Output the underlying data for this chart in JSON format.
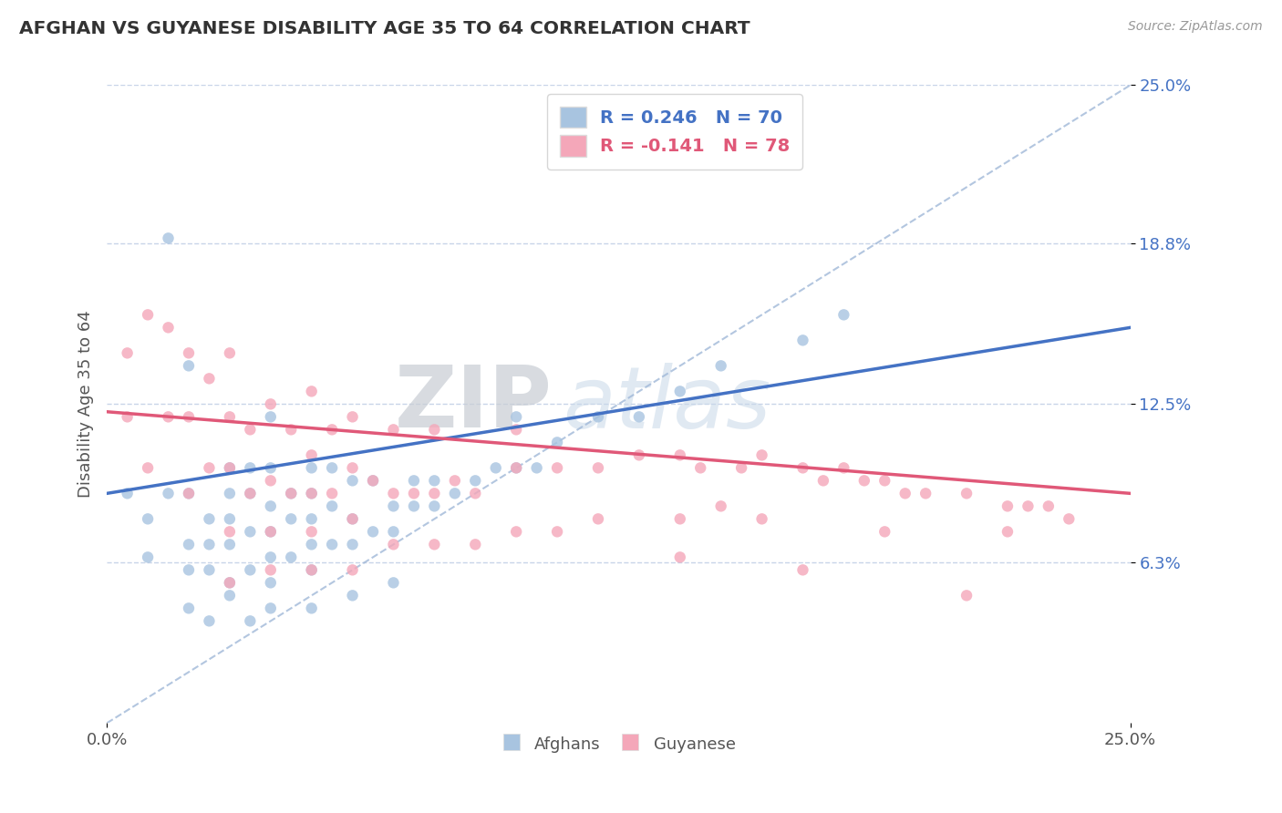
{
  "title": "AFGHAN VS GUYANESE DISABILITY AGE 35 TO 64 CORRELATION CHART",
  "source_text": "Source: ZipAtlas.com",
  "ylabel": "Disability Age 35 to 64",
  "xlim": [
    0.0,
    0.25
  ],
  "ylim": [
    0.0,
    0.25
  ],
  "ytick_labels": [
    "6.3%",
    "12.5%",
    "18.8%",
    "25.0%"
  ],
  "ytick_values": [
    0.063,
    0.125,
    0.188,
    0.25
  ],
  "afghan_color": "#a8c4e0",
  "guyanese_color": "#f4a7b9",
  "afghan_line_color": "#4472c4",
  "guyanese_line_color": "#e05878",
  "trend_line_color": "#a0b8d8",
  "R_afghan": 0.246,
  "N_afghan": 70,
  "R_guyanese": -0.141,
  "N_guyanese": 78,
  "legend_label_afghan": "Afghans",
  "legend_label_guyanese": "Guyanese",
  "watermark_zip": "ZIP",
  "watermark_atlas": "atlas",
  "background_color": "#ffffff",
  "grid_color": "#c8d4e8",
  "afghan_line_x0": 0.0,
  "afghan_line_y0": 0.09,
  "afghan_line_x1": 0.25,
  "afghan_line_y1": 0.155,
  "guyanese_line_x0": 0.0,
  "guyanese_line_y0": 0.122,
  "guyanese_line_x1": 0.25,
  "guyanese_line_y1": 0.09,
  "afghan_scatter_x": [
    0.005,
    0.01,
    0.01,
    0.015,
    0.015,
    0.02,
    0.02,
    0.02,
    0.02,
    0.025,
    0.025,
    0.025,
    0.03,
    0.03,
    0.03,
    0.03,
    0.03,
    0.035,
    0.035,
    0.035,
    0.035,
    0.04,
    0.04,
    0.04,
    0.04,
    0.04,
    0.04,
    0.045,
    0.045,
    0.045,
    0.05,
    0.05,
    0.05,
    0.05,
    0.05,
    0.055,
    0.055,
    0.055,
    0.06,
    0.06,
    0.06,
    0.065,
    0.065,
    0.07,
    0.07,
    0.075,
    0.075,
    0.08,
    0.08,
    0.085,
    0.09,
    0.095,
    0.1,
    0.1,
    0.105,
    0.11,
    0.12,
    0.13,
    0.14,
    0.15,
    0.17,
    0.18,
    0.02,
    0.03,
    0.04,
    0.05,
    0.06,
    0.07,
    0.025,
    0.035
  ],
  "afghan_scatter_y": [
    0.09,
    0.065,
    0.08,
    0.09,
    0.19,
    0.06,
    0.07,
    0.09,
    0.14,
    0.06,
    0.07,
    0.08,
    0.055,
    0.07,
    0.08,
    0.09,
    0.1,
    0.06,
    0.075,
    0.09,
    0.1,
    0.055,
    0.065,
    0.075,
    0.085,
    0.1,
    0.12,
    0.065,
    0.08,
    0.09,
    0.06,
    0.07,
    0.08,
    0.09,
    0.1,
    0.07,
    0.085,
    0.1,
    0.07,
    0.08,
    0.095,
    0.075,
    0.095,
    0.075,
    0.085,
    0.085,
    0.095,
    0.085,
    0.095,
    0.09,
    0.095,
    0.1,
    0.1,
    0.12,
    0.1,
    0.11,
    0.12,
    0.12,
    0.13,
    0.14,
    0.15,
    0.16,
    0.045,
    0.05,
    0.045,
    0.045,
    0.05,
    0.055,
    0.04,
    0.04
  ],
  "guyanese_scatter_x": [
    0.005,
    0.005,
    0.01,
    0.01,
    0.015,
    0.015,
    0.02,
    0.02,
    0.02,
    0.025,
    0.025,
    0.03,
    0.03,
    0.03,
    0.03,
    0.035,
    0.035,
    0.04,
    0.04,
    0.04,
    0.045,
    0.045,
    0.05,
    0.05,
    0.05,
    0.05,
    0.055,
    0.055,
    0.06,
    0.06,
    0.06,
    0.065,
    0.07,
    0.07,
    0.075,
    0.08,
    0.08,
    0.085,
    0.09,
    0.1,
    0.1,
    0.11,
    0.12,
    0.13,
    0.14,
    0.145,
    0.155,
    0.16,
    0.17,
    0.175,
    0.18,
    0.185,
    0.19,
    0.195,
    0.2,
    0.21,
    0.22,
    0.225,
    0.23,
    0.235,
    0.03,
    0.04,
    0.05,
    0.06,
    0.07,
    0.08,
    0.09,
    0.1,
    0.11,
    0.12,
    0.14,
    0.15,
    0.16,
    0.19,
    0.22,
    0.14,
    0.17,
    0.21
  ],
  "guyanese_scatter_y": [
    0.12,
    0.145,
    0.1,
    0.16,
    0.12,
    0.155,
    0.09,
    0.12,
    0.145,
    0.1,
    0.135,
    0.075,
    0.1,
    0.12,
    0.145,
    0.09,
    0.115,
    0.075,
    0.095,
    0.125,
    0.09,
    0.115,
    0.075,
    0.09,
    0.105,
    0.13,
    0.09,
    0.115,
    0.08,
    0.1,
    0.12,
    0.095,
    0.09,
    0.115,
    0.09,
    0.09,
    0.115,
    0.095,
    0.09,
    0.1,
    0.115,
    0.1,
    0.1,
    0.105,
    0.105,
    0.1,
    0.1,
    0.105,
    0.1,
    0.095,
    0.1,
    0.095,
    0.095,
    0.09,
    0.09,
    0.09,
    0.085,
    0.085,
    0.085,
    0.08,
    0.055,
    0.06,
    0.06,
    0.06,
    0.07,
    0.07,
    0.07,
    0.075,
    0.075,
    0.08,
    0.08,
    0.085,
    0.08,
    0.075,
    0.075,
    0.065,
    0.06,
    0.05
  ]
}
